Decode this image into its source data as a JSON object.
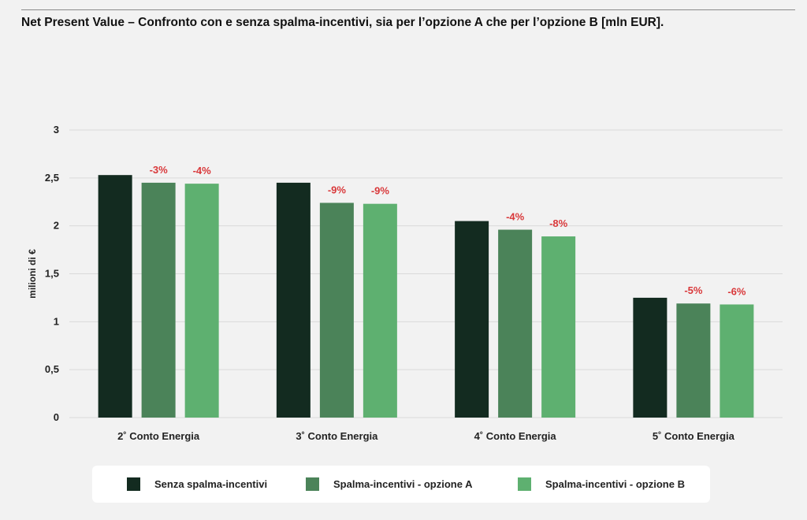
{
  "header": {
    "title": "Net Present Value – Confronto con e senza spalma-incentivi, sia per l’opzione A che per l’opzione B [mln EUR]."
  },
  "colors": {
    "series": [
      "#132b20",
      "#4b8359",
      "#5eb070"
    ],
    "pct_label": "#d9383a",
    "grid": "#dadada"
  },
  "chart_data": {
    "type": "bar",
    "title": "Net Present Value – Confronto con e senza spalma-incentivi, sia per l’opzione A che per l’opzione B [mln EUR].",
    "xlabel": "",
    "ylabel": "milioni di €",
    "ylim": [
      0,
      3
    ],
    "yticks": [
      0,
      0.5,
      1,
      1.5,
      2,
      2.5,
      3
    ],
    "ytick_labels": [
      "0",
      "0,5",
      "1",
      "1,5",
      "2",
      "2,5",
      "3"
    ],
    "grid": true,
    "legend_position": "bottom",
    "categories": [
      "2˚ Conto Energia",
      "3˚ Conto Energia",
      "4˚ Conto Energia",
      "5˚ Conto Energia"
    ],
    "series": [
      {
        "name": "Senza spalma-incentivi",
        "values": [
          2.53,
          2.45,
          2.05,
          1.25
        ],
        "labels": [
          "",
          "",
          "",
          ""
        ]
      },
      {
        "name": "Spalma-incentivi - opzione A",
        "values": [
          2.45,
          2.24,
          1.96,
          1.19
        ],
        "labels": [
          "-3%",
          "-9%",
          "-4%",
          "-5%"
        ]
      },
      {
        "name": "Spalma-incentivi - opzione B",
        "values": [
          2.44,
          2.23,
          1.89,
          1.18
        ],
        "labels": [
          "-4%",
          "-9%",
          "-8%",
          "-6%"
        ]
      }
    ]
  },
  "legend": {
    "items": [
      {
        "label": "Senza spalma-incentivi"
      },
      {
        "label": "Spalma-incentivi - opzione A"
      },
      {
        "label": "Spalma-incentivi - opzione B"
      }
    ]
  }
}
